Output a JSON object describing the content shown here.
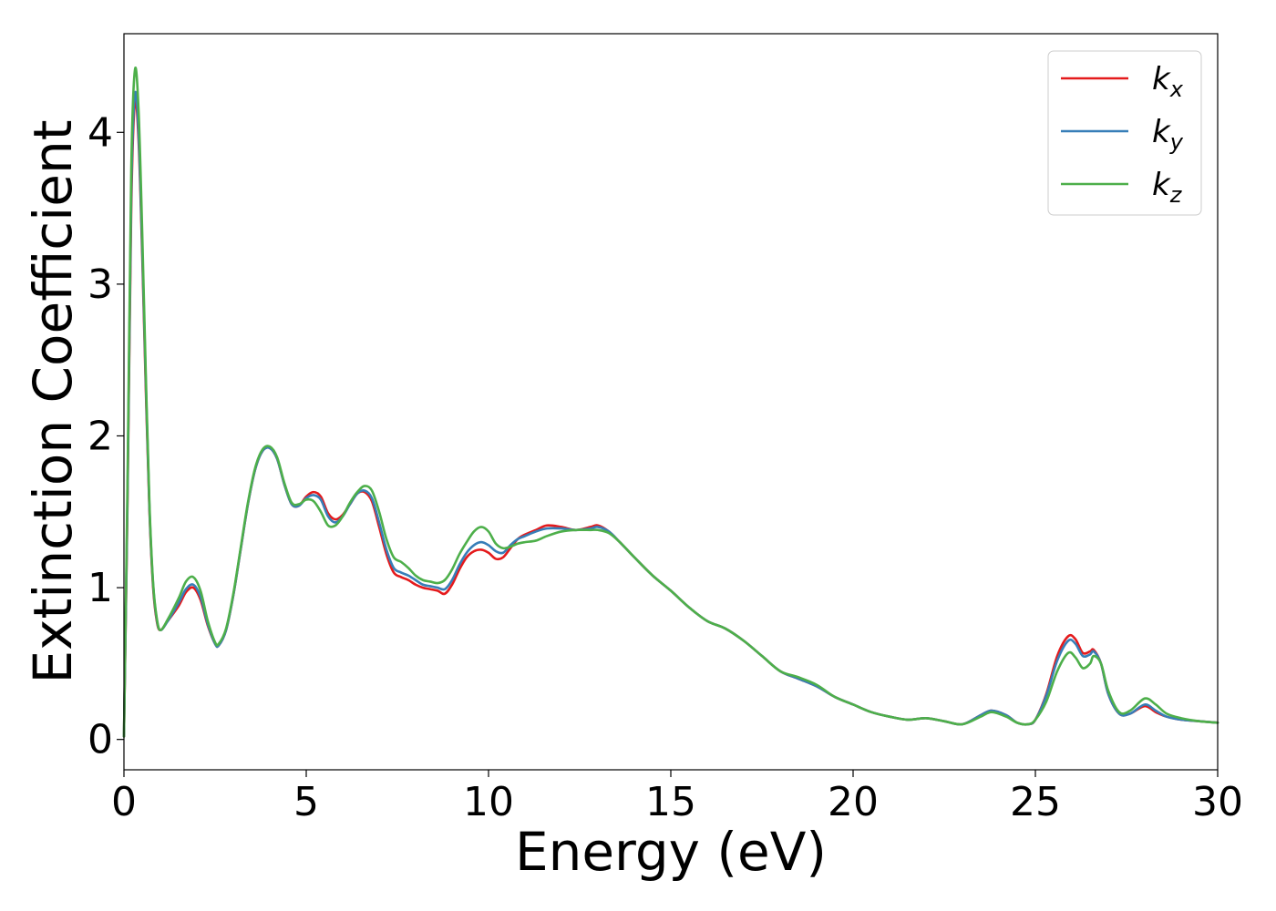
{
  "chart_data": {
    "type": "line",
    "xlabel": "Energy (eV)",
    "ylabel": "Extinction Coefficient",
    "xlim": [
      0,
      30
    ],
    "ylim": [
      -0.2,
      4.65
    ],
    "xticks": [
      0,
      5,
      10,
      15,
      20,
      25,
      30
    ],
    "yticks": [
      0,
      1,
      2,
      3,
      4
    ],
    "grid": false,
    "legend_position": "top-right",
    "series": [
      {
        "name": "k_x",
        "label_main": "k",
        "label_sub": "x",
        "color": "#e41a1c",
        "x": [
          0,
          0.1,
          0.2,
          0.3,
          0.4,
          0.5,
          0.6,
          0.7,
          0.8,
          0.9,
          1.0,
          1.2,
          1.5,
          1.7,
          1.9,
          2.1,
          2.3,
          2.5,
          2.6,
          2.8,
          3.0,
          3.2,
          3.4,
          3.6,
          3.8,
          4.0,
          4.2,
          4.4,
          4.6,
          4.8,
          5.0,
          5.2,
          5.4,
          5.6,
          5.8,
          6.0,
          6.2,
          6.4,
          6.6,
          6.8,
          7.0,
          7.2,
          7.4,
          7.6,
          7.8,
          8.0,
          8.2,
          8.4,
          8.6,
          8.8,
          9.0,
          9.2,
          9.4,
          9.6,
          9.8,
          10.0,
          10.2,
          10.4,
          10.6,
          10.8,
          11.0,
          11.3,
          11.6,
          12.0,
          12.4,
          12.8,
          13.0,
          13.3,
          13.6,
          14.0,
          14.5,
          15.0,
          15.5,
          16.0,
          16.5,
          17.0,
          17.5,
          18.0,
          18.5,
          19.0,
          19.5,
          20.0,
          20.5,
          21.0,
          21.5,
          22.0,
          22.5,
          23.0,
          23.5,
          23.8,
          24.2,
          24.5,
          24.8,
          25.0,
          25.3,
          25.6,
          25.9,
          26.1,
          26.3,
          26.5,
          26.6,
          26.8,
          27.0,
          27.3,
          27.6,
          28.0,
          28.3,
          28.6,
          29.0,
          29.5,
          30.0
        ],
        "values": [
          0.02,
          1.6,
          3.5,
          4.2,
          3.95,
          3.2,
          2.3,
          1.5,
          1.0,
          0.78,
          0.72,
          0.78,
          0.88,
          0.97,
          1.0,
          0.92,
          0.75,
          0.63,
          0.62,
          0.72,
          0.95,
          1.25,
          1.55,
          1.78,
          1.9,
          1.92,
          1.85,
          1.68,
          1.55,
          1.54,
          1.6,
          1.63,
          1.6,
          1.49,
          1.45,
          1.48,
          1.55,
          1.62,
          1.63,
          1.57,
          1.4,
          1.22,
          1.1,
          1.07,
          1.05,
          1.02,
          1.0,
          0.99,
          0.98,
          0.96,
          1.02,
          1.12,
          1.2,
          1.24,
          1.25,
          1.23,
          1.19,
          1.2,
          1.26,
          1.32,
          1.35,
          1.38,
          1.41,
          1.4,
          1.38,
          1.4,
          1.41,
          1.37,
          1.3,
          1.2,
          1.08,
          0.98,
          0.87,
          0.78,
          0.73,
          0.65,
          0.55,
          0.45,
          0.4,
          0.35,
          0.28,
          0.23,
          0.18,
          0.15,
          0.13,
          0.14,
          0.12,
          0.1,
          0.16,
          0.19,
          0.16,
          0.11,
          0.1,
          0.13,
          0.3,
          0.55,
          0.68,
          0.66,
          0.57,
          0.58,
          0.59,
          0.5,
          0.3,
          0.17,
          0.17,
          0.22,
          0.18,
          0.15,
          0.13,
          0.12,
          0.11
        ]
      },
      {
        "name": "k_y",
        "label_main": "k",
        "label_sub": "y",
        "color": "#377eb8",
        "x": [
          0,
          0.1,
          0.2,
          0.3,
          0.4,
          0.5,
          0.6,
          0.7,
          0.8,
          0.9,
          1.0,
          1.2,
          1.5,
          1.7,
          1.9,
          2.1,
          2.3,
          2.5,
          2.6,
          2.8,
          3.0,
          3.2,
          3.4,
          3.6,
          3.8,
          4.0,
          4.2,
          4.4,
          4.6,
          4.8,
          5.0,
          5.2,
          5.4,
          5.6,
          5.8,
          6.0,
          6.2,
          6.4,
          6.6,
          6.8,
          7.0,
          7.2,
          7.4,
          7.6,
          7.8,
          8.0,
          8.2,
          8.4,
          8.6,
          8.8,
          9.0,
          9.2,
          9.4,
          9.6,
          9.8,
          10.0,
          10.2,
          10.4,
          10.6,
          10.8,
          11.0,
          11.3,
          11.6,
          12.0,
          12.4,
          12.8,
          13.0,
          13.3,
          13.6,
          14.0,
          14.5,
          15.0,
          15.5,
          16.0,
          16.5,
          17.0,
          17.5,
          18.0,
          18.5,
          19.0,
          19.5,
          20.0,
          20.5,
          21.0,
          21.5,
          22.0,
          22.5,
          23.0,
          23.5,
          23.8,
          24.2,
          24.5,
          24.8,
          25.0,
          25.3,
          25.6,
          25.9,
          26.1,
          26.3,
          26.5,
          26.6,
          26.8,
          27.0,
          27.3,
          27.6,
          28.0,
          28.3,
          28.6,
          29.0,
          29.5,
          30.0
        ],
        "values": [
          0.02,
          1.65,
          3.6,
          4.25,
          4.0,
          3.25,
          2.35,
          1.52,
          1.02,
          0.79,
          0.72,
          0.78,
          0.9,
          0.99,
          1.02,
          0.94,
          0.76,
          0.63,
          0.62,
          0.72,
          0.95,
          1.25,
          1.55,
          1.78,
          1.9,
          1.92,
          1.85,
          1.68,
          1.55,
          1.54,
          1.59,
          1.61,
          1.58,
          1.47,
          1.43,
          1.47,
          1.55,
          1.62,
          1.64,
          1.59,
          1.43,
          1.25,
          1.13,
          1.1,
          1.08,
          1.05,
          1.02,
          1.01,
          1.0,
          0.99,
          1.05,
          1.15,
          1.23,
          1.28,
          1.3,
          1.28,
          1.24,
          1.23,
          1.28,
          1.32,
          1.34,
          1.37,
          1.39,
          1.39,
          1.38,
          1.39,
          1.4,
          1.37,
          1.3,
          1.2,
          1.08,
          0.98,
          0.87,
          0.78,
          0.73,
          0.65,
          0.55,
          0.45,
          0.4,
          0.35,
          0.28,
          0.23,
          0.18,
          0.15,
          0.13,
          0.14,
          0.12,
          0.1,
          0.16,
          0.19,
          0.16,
          0.11,
          0.1,
          0.13,
          0.29,
          0.52,
          0.65,
          0.63,
          0.55,
          0.56,
          0.58,
          0.5,
          0.3,
          0.17,
          0.17,
          0.23,
          0.19,
          0.15,
          0.13,
          0.12,
          0.11
        ]
      },
      {
        "name": "k_z",
        "label_main": "k",
        "label_sub": "z",
        "color": "#4daf4a",
        "x": [
          0,
          0.1,
          0.2,
          0.3,
          0.4,
          0.5,
          0.6,
          0.7,
          0.8,
          0.9,
          1.0,
          1.2,
          1.5,
          1.7,
          1.9,
          2.1,
          2.3,
          2.5,
          2.6,
          2.8,
          3.0,
          3.2,
          3.4,
          3.6,
          3.8,
          4.0,
          4.2,
          4.4,
          4.6,
          4.8,
          5.0,
          5.2,
          5.4,
          5.6,
          5.8,
          6.0,
          6.2,
          6.4,
          6.6,
          6.8,
          7.0,
          7.2,
          7.4,
          7.6,
          7.8,
          8.0,
          8.2,
          8.4,
          8.6,
          8.8,
          9.0,
          9.2,
          9.4,
          9.6,
          9.8,
          10.0,
          10.2,
          10.4,
          10.6,
          10.8,
          11.0,
          11.3,
          11.6,
          12.0,
          12.4,
          12.8,
          13.0,
          13.3,
          13.6,
          14.0,
          14.5,
          15.0,
          15.5,
          16.0,
          16.5,
          17.0,
          17.5,
          18.0,
          18.5,
          19.0,
          19.5,
          20.0,
          20.5,
          21.0,
          21.5,
          22.0,
          22.5,
          23.0,
          23.5,
          23.8,
          24.2,
          24.5,
          24.8,
          25.0,
          25.3,
          25.6,
          25.9,
          26.1,
          26.3,
          26.5,
          26.6,
          26.8,
          27.0,
          27.3,
          27.6,
          28.0,
          28.3,
          28.6,
          29.0,
          29.5,
          30.0
        ],
        "values": [
          0.02,
          1.75,
          3.75,
          4.41,
          4.15,
          3.35,
          2.4,
          1.55,
          1.03,
          0.8,
          0.72,
          0.79,
          0.93,
          1.04,
          1.07,
          0.98,
          0.78,
          0.64,
          0.63,
          0.73,
          0.96,
          1.26,
          1.56,
          1.79,
          1.91,
          1.93,
          1.86,
          1.69,
          1.56,
          1.55,
          1.58,
          1.57,
          1.5,
          1.41,
          1.41,
          1.47,
          1.56,
          1.63,
          1.67,
          1.64,
          1.5,
          1.32,
          1.2,
          1.17,
          1.13,
          1.08,
          1.05,
          1.04,
          1.03,
          1.05,
          1.12,
          1.22,
          1.3,
          1.37,
          1.4,
          1.37,
          1.29,
          1.26,
          1.27,
          1.29,
          1.3,
          1.31,
          1.34,
          1.37,
          1.38,
          1.38,
          1.38,
          1.36,
          1.3,
          1.2,
          1.08,
          0.98,
          0.87,
          0.78,
          0.73,
          0.65,
          0.55,
          0.45,
          0.41,
          0.36,
          0.28,
          0.23,
          0.18,
          0.15,
          0.13,
          0.14,
          0.12,
          0.1,
          0.15,
          0.18,
          0.15,
          0.11,
          0.1,
          0.13,
          0.25,
          0.45,
          0.57,
          0.54,
          0.47,
          0.5,
          0.55,
          0.5,
          0.32,
          0.18,
          0.19,
          0.27,
          0.23,
          0.17,
          0.14,
          0.12,
          0.11
        ]
      }
    ]
  }
}
